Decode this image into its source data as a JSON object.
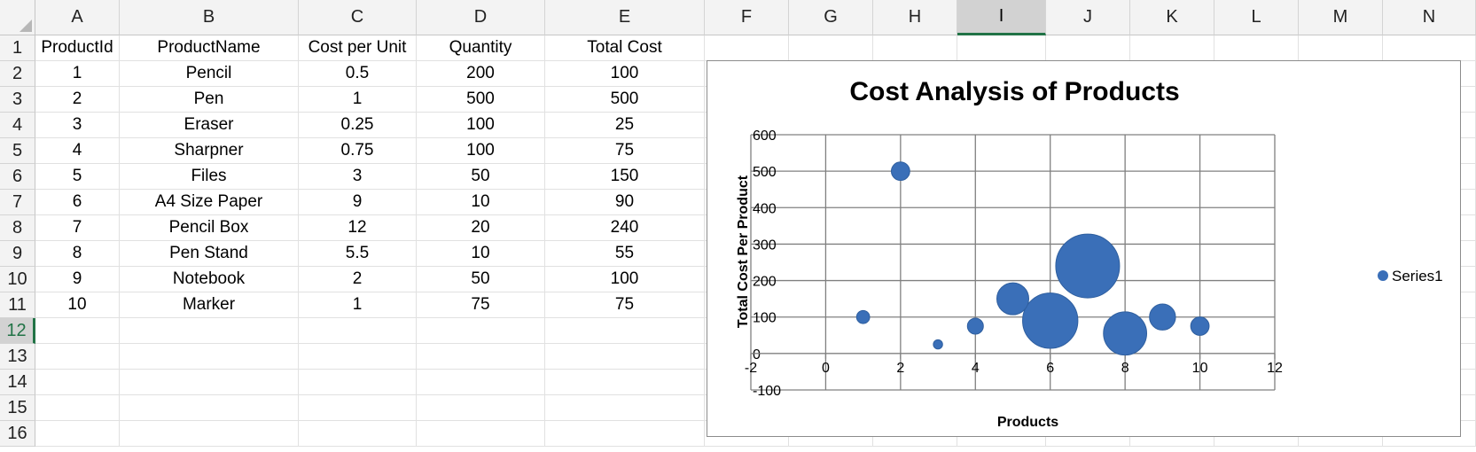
{
  "columns": [
    "A",
    "B",
    "C",
    "D",
    "E",
    "F",
    "G",
    "H",
    "I",
    "J",
    "K",
    "L",
    "M",
    "N"
  ],
  "rows": [
    "1",
    "2",
    "3",
    "4",
    "5",
    "6",
    "7",
    "8",
    "9",
    "10",
    "11",
    "12",
    "13",
    "14",
    "15",
    "16"
  ],
  "selected_column": "I",
  "selected_row": "12",
  "table": {
    "headers": [
      "ProductId",
      "ProductName",
      "Cost per Unit",
      "Quantity",
      "Total Cost"
    ],
    "rows": [
      [
        "1",
        "Pencil",
        "0.5",
        "200",
        "100"
      ],
      [
        "2",
        "Pen",
        "1",
        "500",
        "500"
      ],
      [
        "3",
        "Eraser",
        "0.25",
        "100",
        "25"
      ],
      [
        "4",
        "Sharpner",
        "0.75",
        "100",
        "75"
      ],
      [
        "5",
        "Files",
        "3",
        "50",
        "150"
      ],
      [
        "6",
        "A4 Size Paper",
        "9",
        "10",
        "90"
      ],
      [
        "7",
        "Pencil Box",
        "12",
        "20",
        "240"
      ],
      [
        "8",
        "Pen Stand",
        "5.5",
        "10",
        "55"
      ],
      [
        "9",
        "Notebook",
        "2",
        "50",
        "100"
      ],
      [
        "10",
        "Marker",
        "1",
        "75",
        "75"
      ]
    ]
  },
  "colors": {
    "bubble": "#3a6fb8",
    "grid": "#808080",
    "selected_accent": "#217346"
  },
  "chart_data": {
    "type": "scatter",
    "subtype": "bubble",
    "title": "Cost Analysis of Products",
    "xlabel": "Products",
    "ylabel": "Total Cost Per Product",
    "xlim": [
      -2,
      12
    ],
    "ylim": [
      -100,
      600
    ],
    "xticks": [
      "-2",
      "0",
      "2",
      "4",
      "6",
      "8",
      "10",
      "12"
    ],
    "yticks": [
      "-100",
      "0",
      "100",
      "200",
      "300",
      "400",
      "500",
      "600"
    ],
    "grid": true,
    "legend_position": "right",
    "series": [
      {
        "name": "Series1",
        "x": [
          1,
          2,
          3,
          4,
          5,
          6,
          7,
          8,
          9,
          10
        ],
        "y": [
          100,
          500,
          25,
          75,
          150,
          90,
          240,
          55,
          100,
          75
        ],
        "size": [
          0.5,
          1,
          0.25,
          0.75,
          3,
          9,
          12,
          5.5,
          2,
          1
        ]
      }
    ]
  }
}
